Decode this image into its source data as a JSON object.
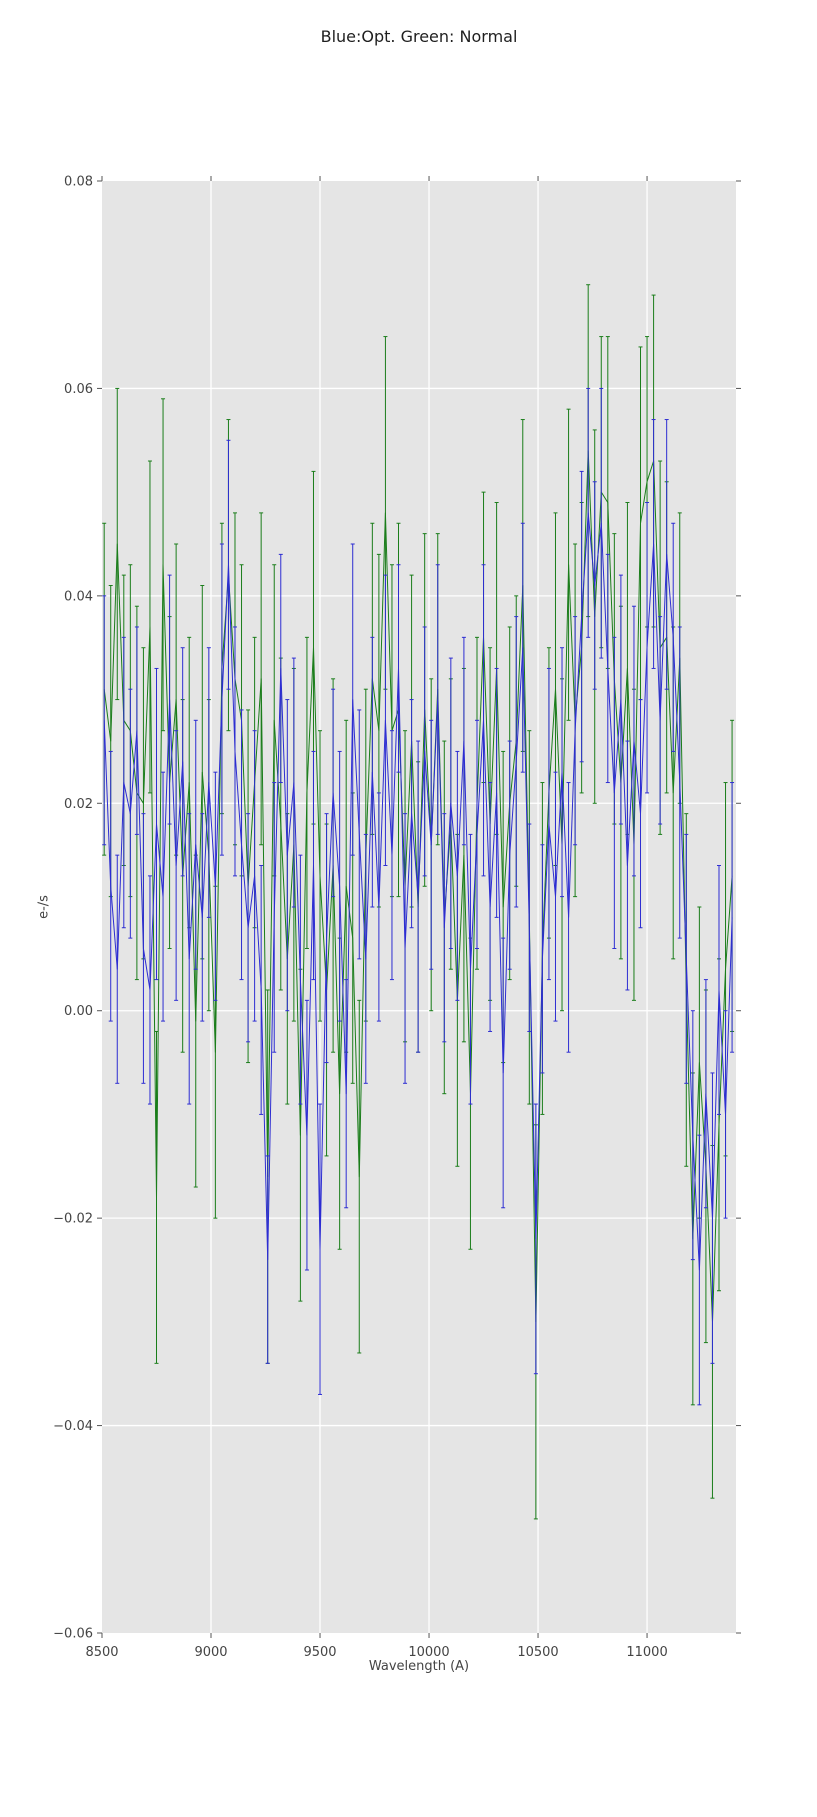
{
  "colors": {
    "blue_series": "#2d2dd2",
    "green_series": "#1a7d1a",
    "plot_bg": "#e5e5e5",
    "grid": "#ffffff",
    "tick": "#555555",
    "tick_label": "#444444",
    "title_color": "#1f1f1f",
    "figure_bg": "#ffffff"
  },
  "chart_data": {
    "type": "line",
    "title": "Blue:Opt. Green: Normal",
    "xlabel": "Wavelength (A)",
    "ylabel": "e-/s",
    "xlim": [
      8500,
      11408
    ],
    "ylim": [
      -0.06,
      0.08
    ],
    "xticks": [
      8500,
      9000,
      9500,
      10000,
      10500,
      11000
    ],
    "yticks": [
      -0.06,
      -0.04,
      -0.02,
      0.0,
      0.02,
      0.04,
      0.06,
      0.08
    ],
    "xtick_labels": [
      "8500",
      "9000",
      "9500",
      "10000",
      "10500",
      "11000"
    ],
    "ytick_labels": [
      "−0.06",
      "−0.04",
      "−0.02",
      "0.00",
      "0.02",
      "0.04",
      "0.06",
      "0.08"
    ],
    "grid": true,
    "legend_position": "none",
    "error_bars": true,
    "x": [
      8510,
      8540,
      8570,
      8600,
      8630,
      8660,
      8690,
      8720,
      8750,
      8780,
      8810,
      8840,
      8870,
      8900,
      8930,
      8960,
      8990,
      9020,
      9050,
      9080,
      9110,
      9140,
      9170,
      9200,
      9230,
      9260,
      9290,
      9320,
      9350,
      9380,
      9410,
      9440,
      9470,
      9500,
      9530,
      9560,
      9590,
      9620,
      9650,
      9680,
      9710,
      9740,
      9770,
      9800,
      9830,
      9860,
      9890,
      9920,
      9950,
      9980,
      10010,
      10040,
      10070,
      10100,
      10130,
      10160,
      10190,
      10220,
      10250,
      10280,
      10310,
      10340,
      10370,
      10400,
      10430,
      10460,
      10490,
      10520,
      10550,
      10580,
      10610,
      10640,
      10670,
      10700,
      10730,
      10760,
      10790,
      10820,
      10850,
      10880,
      10910,
      10940,
      10970,
      11000,
      11030,
      11060,
      11090,
      11120,
      11150,
      11180,
      11210,
      11240,
      11270,
      11300,
      11330,
      11360,
      11390
    ],
    "series": [
      {
        "name": "Opt",
        "color_key": "blue_series",
        "values": [
          0.028,
          0.012,
          0.004,
          0.022,
          0.019,
          0.027,
          0.006,
          0.002,
          0.018,
          0.011,
          0.03,
          0.014,
          0.024,
          0.005,
          0.016,
          0.009,
          0.022,
          0.012,
          0.03,
          0.043,
          0.025,
          0.016,
          0.008,
          0.013,
          0.002,
          -0.024,
          0.009,
          0.033,
          0.015,
          0.022,
          0.003,
          -0.012,
          0.014,
          -0.023,
          0.007,
          0.021,
          0.012,
          -0.008,
          0.03,
          0.017,
          0.005,
          0.023,
          0.01,
          0.028,
          0.015,
          0.033,
          0.006,
          0.019,
          0.011,
          0.025,
          0.016,
          0.03,
          0.008,
          0.02,
          0.013,
          0.026,
          0.004,
          0.017,
          0.028,
          0.01,
          0.021,
          -0.006,
          0.015,
          0.024,
          0.035,
          0.008,
          -0.022,
          0.005,
          0.018,
          0.011,
          0.023,
          0.009,
          0.027,
          0.038,
          0.048,
          0.041,
          0.047,
          0.033,
          0.021,
          0.03,
          0.014,
          0.026,
          0.019,
          0.035,
          0.045,
          0.028,
          0.044,
          0.036,
          0.022,
          0.005,
          -0.012,
          -0.025,
          -0.008,
          -0.02,
          0.002,
          -0.01,
          0.009
        ],
        "errors": [
          0.012,
          0.013,
          0.011,
          0.014,
          0.012,
          0.01,
          0.013,
          0.011,
          0.015,
          0.012,
          0.012,
          0.013,
          0.011,
          0.014,
          0.012,
          0.01,
          0.013,
          0.011,
          0.015,
          0.012,
          0.012,
          0.013,
          0.011,
          0.014,
          0.012,
          0.01,
          0.013,
          0.011,
          0.015,
          0.012,
          0.012,
          0.013,
          0.011,
          0.014,
          0.012,
          0.01,
          0.013,
          0.011,
          0.015,
          0.012,
          0.012,
          0.013,
          0.011,
          0.014,
          0.012,
          0.01,
          0.013,
          0.011,
          0.015,
          0.012,
          0.012,
          0.013,
          0.011,
          0.014,
          0.012,
          0.01,
          0.013,
          0.011,
          0.015,
          0.012,
          0.012,
          0.013,
          0.011,
          0.014,
          0.012,
          0.01,
          0.013,
          0.011,
          0.015,
          0.012,
          0.012,
          0.013,
          0.011,
          0.014,
          0.012,
          0.01,
          0.013,
          0.011,
          0.015,
          0.012,
          0.012,
          0.013,
          0.011,
          0.014,
          0.012,
          0.01,
          0.013,
          0.011,
          0.015,
          0.012,
          0.012,
          0.013,
          0.011,
          0.014,
          0.012,
          0.01,
          0.013
        ]
      },
      {
        "name": "Normal",
        "color_key": "green_series",
        "values": [
          0.031,
          0.026,
          0.045,
          0.028,
          0.027,
          0.021,
          0.02,
          0.037,
          -0.018,
          0.043,
          0.022,
          0.03,
          0.013,
          0.022,
          -0.001,
          0.023,
          0.015,
          -0.004,
          0.033,
          0.042,
          0.032,
          0.028,
          0.012,
          0.022,
          0.032,
          -0.016,
          0.028,
          0.018,
          0.005,
          0.016,
          -0.012,
          0.021,
          0.035,
          0.013,
          0.002,
          0.014,
          -0.008,
          0.012,
          0.007,
          -0.016,
          0.015,
          0.032,
          0.027,
          0.048,
          0.027,
          0.029,
          0.012,
          0.026,
          0.01,
          0.029,
          0.016,
          0.031,
          0.009,
          0.018,
          0.001,
          0.015,
          -0.008,
          0.02,
          0.036,
          0.018,
          0.033,
          0.01,
          0.02,
          0.026,
          0.041,
          0.009,
          -0.03,
          0.006,
          0.021,
          0.031,
          0.016,
          0.043,
          0.028,
          0.035,
          0.054,
          0.038,
          0.05,
          0.049,
          0.032,
          0.022,
          0.033,
          0.016,
          0.047,
          0.051,
          0.053,
          0.035,
          0.036,
          0.021,
          0.034,
          0.002,
          -0.022,
          -0.005,
          -0.015,
          -0.03,
          -0.011,
          0.004,
          0.013
        ],
        "errors": [
          0.016,
          0.015,
          0.015,
          0.014,
          0.016,
          0.018,
          0.015,
          0.016,
          0.016,
          0.016,
          0.016,
          0.015,
          0.017,
          0.014,
          0.016,
          0.018,
          0.015,
          0.016,
          0.014,
          0.015,
          0.016,
          0.015,
          0.017,
          0.014,
          0.016,
          0.018,
          0.015,
          0.016,
          0.014,
          0.017,
          0.016,
          0.015,
          0.017,
          0.014,
          0.016,
          0.018,
          0.015,
          0.016,
          0.014,
          0.017,
          0.016,
          0.015,
          0.017,
          0.017,
          0.016,
          0.018,
          0.015,
          0.016,
          0.014,
          0.017,
          0.016,
          0.015,
          0.017,
          0.014,
          0.016,
          0.018,
          0.015,
          0.016,
          0.014,
          0.017,
          0.016,
          0.015,
          0.017,
          0.014,
          0.016,
          0.018,
          0.019,
          0.016,
          0.014,
          0.017,
          0.016,
          0.015,
          0.017,
          0.014,
          0.016,
          0.018,
          0.015,
          0.016,
          0.014,
          0.017,
          0.016,
          0.015,
          0.017,
          0.014,
          0.016,
          0.018,
          0.015,
          0.016,
          0.014,
          0.017,
          0.016,
          0.015,
          0.017,
          0.017,
          0.016,
          0.018,
          0.015
        ]
      }
    ]
  }
}
